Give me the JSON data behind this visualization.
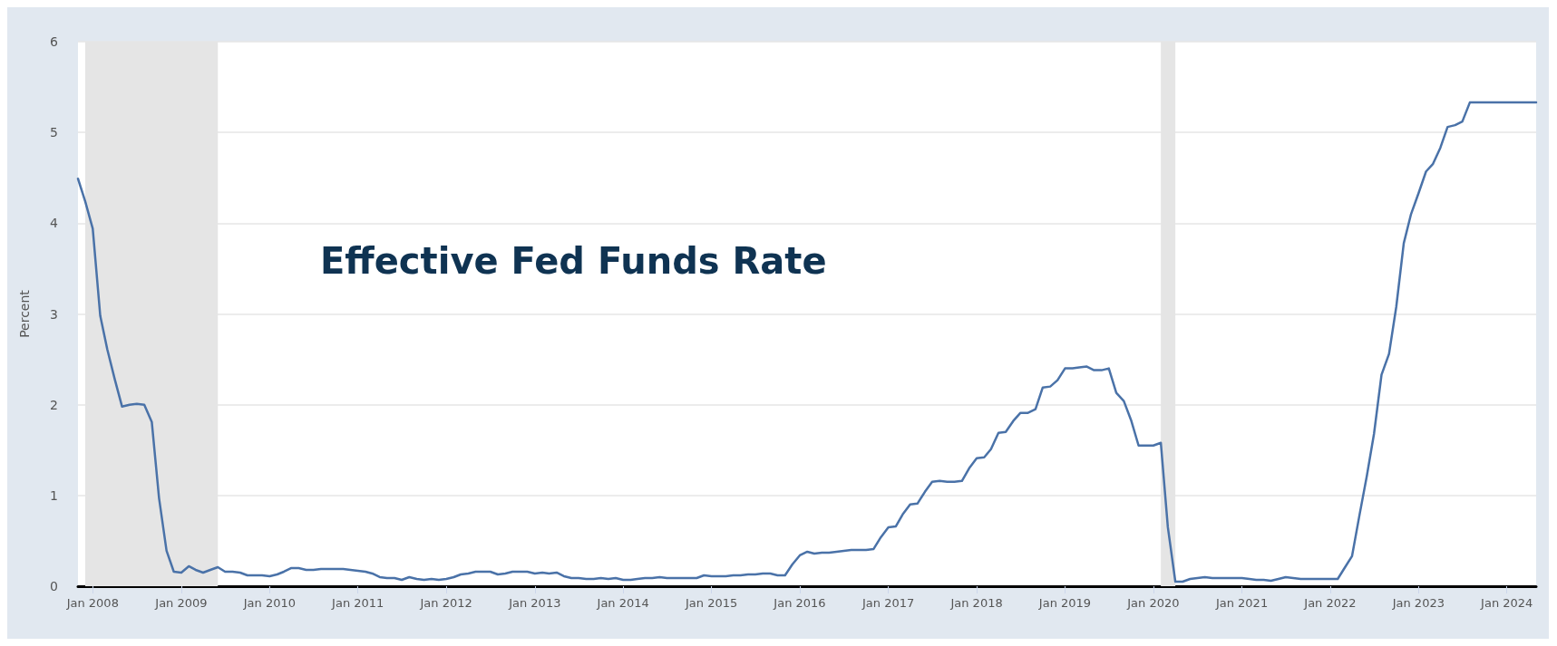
{
  "chart_data": {
    "type": "line",
    "title": "Effective Fed Funds Rate",
    "ylabel": "Percent",
    "x": [
      "2007-11",
      "2007-12",
      "2008-01",
      "2008-02",
      "2008-03",
      "2008-04",
      "2008-05",
      "2008-06",
      "2008-07",
      "2008-08",
      "2008-09",
      "2008-10",
      "2008-11",
      "2008-12",
      "2009-01",
      "2009-02",
      "2009-03",
      "2009-04",
      "2009-05",
      "2009-06",
      "2009-07",
      "2009-08",
      "2009-09",
      "2009-10",
      "2009-11",
      "2009-12",
      "2010-01",
      "2010-02",
      "2010-03",
      "2010-04",
      "2010-05",
      "2010-06",
      "2010-07",
      "2010-08",
      "2010-09",
      "2010-10",
      "2010-11",
      "2010-12",
      "2011-01",
      "2011-02",
      "2011-03",
      "2011-04",
      "2011-05",
      "2011-06",
      "2011-07",
      "2011-08",
      "2011-09",
      "2011-10",
      "2011-11",
      "2011-12",
      "2012-01",
      "2012-02",
      "2012-03",
      "2012-04",
      "2012-05",
      "2012-06",
      "2012-07",
      "2012-08",
      "2012-09",
      "2012-10",
      "2012-11",
      "2012-12",
      "2013-01",
      "2013-02",
      "2013-03",
      "2013-04",
      "2013-05",
      "2013-06",
      "2013-07",
      "2013-08",
      "2013-09",
      "2013-10",
      "2013-11",
      "2013-12",
      "2014-01",
      "2014-02",
      "2014-03",
      "2014-04",
      "2014-05",
      "2014-06",
      "2014-07",
      "2014-08",
      "2014-09",
      "2014-10",
      "2014-11",
      "2014-12",
      "2015-01",
      "2015-02",
      "2015-03",
      "2015-04",
      "2015-05",
      "2015-06",
      "2015-07",
      "2015-08",
      "2015-09",
      "2015-10",
      "2015-11",
      "2015-12",
      "2016-01",
      "2016-02",
      "2016-03",
      "2016-04",
      "2016-05",
      "2016-06",
      "2016-07",
      "2016-08",
      "2016-09",
      "2016-10",
      "2016-11",
      "2016-12",
      "2017-01",
      "2017-02",
      "2017-03",
      "2017-04",
      "2017-05",
      "2017-06",
      "2017-07",
      "2017-08",
      "2017-09",
      "2017-10",
      "2017-11",
      "2017-12",
      "2018-01",
      "2018-02",
      "2018-03",
      "2018-04",
      "2018-05",
      "2018-06",
      "2018-07",
      "2018-08",
      "2018-09",
      "2018-10",
      "2018-11",
      "2018-12",
      "2019-01",
      "2019-02",
      "2019-03",
      "2019-04",
      "2019-05",
      "2019-06",
      "2019-07",
      "2019-08",
      "2019-09",
      "2019-10",
      "2019-11",
      "2019-12",
      "2020-01",
      "2020-02",
      "2020-03",
      "2020-04",
      "2020-05",
      "2020-06",
      "2020-07",
      "2020-08",
      "2020-09",
      "2020-10",
      "2020-11",
      "2020-12",
      "2021-01",
      "2021-02",
      "2021-03",
      "2021-04",
      "2021-05",
      "2021-06",
      "2021-07",
      "2021-08",
      "2021-09",
      "2021-10",
      "2021-11",
      "2021-12",
      "2022-01",
      "2022-02",
      "2022-03",
      "2022-04",
      "2022-05",
      "2022-06",
      "2022-07",
      "2022-08",
      "2022-09",
      "2022-10",
      "2022-11",
      "2022-12",
      "2023-01",
      "2023-02",
      "2023-03",
      "2023-04",
      "2023-05",
      "2023-06",
      "2023-07",
      "2023-08",
      "2023-09",
      "2023-10",
      "2023-11",
      "2023-12",
      "2024-01",
      "2024-02",
      "2024-03",
      "2024-04",
      "2024-05"
    ],
    "series": [
      {
        "color": "#4a72a8",
        "values": [
          4.49,
          4.24,
          3.94,
          2.98,
          2.61,
          2.28,
          1.98,
          2.0,
          2.01,
          2.0,
          1.81,
          0.97,
          0.39,
          0.16,
          0.15,
          0.22,
          0.18,
          0.15,
          0.18,
          0.21,
          0.16,
          0.16,
          0.15,
          0.12,
          0.12,
          0.12,
          0.11,
          0.13,
          0.16,
          0.2,
          0.2,
          0.18,
          0.18,
          0.19,
          0.19,
          0.19,
          0.19,
          0.18,
          0.17,
          0.16,
          0.14,
          0.1,
          0.09,
          0.09,
          0.07,
          0.1,
          0.08,
          0.07,
          0.08,
          0.07,
          0.08,
          0.1,
          0.13,
          0.14,
          0.16,
          0.16,
          0.16,
          0.13,
          0.14,
          0.16,
          0.16,
          0.16,
          0.14,
          0.15,
          0.14,
          0.15,
          0.11,
          0.09,
          0.09,
          0.08,
          0.08,
          0.09,
          0.08,
          0.09,
          0.07,
          0.07,
          0.08,
          0.09,
          0.09,
          0.1,
          0.09,
          0.09,
          0.09,
          0.09,
          0.09,
          0.12,
          0.11,
          0.11,
          0.11,
          0.12,
          0.12,
          0.13,
          0.13,
          0.14,
          0.14,
          0.12,
          0.12,
          0.24,
          0.34,
          0.38,
          0.36,
          0.37,
          0.37,
          0.38,
          0.39,
          0.4,
          0.4,
          0.4,
          0.41,
          0.54,
          0.65,
          0.66,
          0.79,
          0.9,
          0.91,
          1.04,
          1.15,
          1.16,
          1.15,
          1.15,
          1.16,
          1.3,
          1.41,
          1.42,
          1.51,
          1.69,
          1.7,
          1.82,
          1.91,
          1.91,
          1.95,
          2.19,
          2.2,
          2.27,
          2.4,
          2.4,
          2.41,
          2.42,
          2.38,
          2.38,
          2.4,
          2.13,
          2.04,
          1.83,
          1.55,
          1.55,
          1.55,
          1.58,
          0.65,
          0.05,
          0.05,
          0.08,
          0.09,
          0.1,
          0.09,
          0.09,
          0.09,
          0.09,
          0.09,
          0.08,
          0.07,
          0.07,
          0.06,
          0.08,
          0.1,
          0.09,
          0.08,
          0.08,
          0.08,
          0.08,
          0.08,
          0.08,
          0.2,
          0.33,
          0.77,
          1.21,
          1.68,
          2.33,
          2.56,
          3.08,
          3.78,
          4.1,
          4.33,
          4.57,
          4.65,
          4.83,
          5.06,
          5.08,
          5.12,
          5.33,
          5.33,
          5.33,
          5.33,
          5.33,
          5.33,
          5.33,
          5.33,
          5.33,
          5.33
        ]
      }
    ],
    "xlim": [
      "2007-11",
      "2024-05"
    ],
    "xticks": [
      {
        "value": "2008-01",
        "label": "Jan 2008"
      },
      {
        "value": "2009-01",
        "label": "Jan 2009"
      },
      {
        "value": "2010-01",
        "label": "Jan 2010"
      },
      {
        "value": "2011-01",
        "label": "Jan 2011"
      },
      {
        "value": "2012-01",
        "label": "Jan 2012"
      },
      {
        "value": "2013-01",
        "label": "Jan 2013"
      },
      {
        "value": "2014-01",
        "label": "Jan 2014"
      },
      {
        "value": "2015-01",
        "label": "Jan 2015"
      },
      {
        "value": "2016-01",
        "label": "Jan 2016"
      },
      {
        "value": "2017-01",
        "label": "Jan 2017"
      },
      {
        "value": "2018-01",
        "label": "Jan 2018"
      },
      {
        "value": "2019-01",
        "label": "Jan 2019"
      },
      {
        "value": "2020-01",
        "label": "Jan 2020"
      },
      {
        "value": "2021-01",
        "label": "Jan 2021"
      },
      {
        "value": "2022-01",
        "label": "Jan 2022"
      },
      {
        "value": "2023-01",
        "label": "Jan 2023"
      },
      {
        "value": "2024-01",
        "label": "Jan 2024"
      }
    ],
    "ylim": [
      0,
      6
    ],
    "yticks": [
      0,
      1,
      2,
      3,
      4,
      5,
      6
    ],
    "bands": [
      {
        "axis": "x",
        "from": "2007-12",
        "to": "2009-06",
        "color": "#e5e5e5"
      },
      {
        "axis": "x",
        "from": "2020-02",
        "to": "2020-04",
        "color": "#e5e5e5"
      }
    ],
    "grid": "y",
    "marker": "none",
    "line_style": "solid"
  }
}
